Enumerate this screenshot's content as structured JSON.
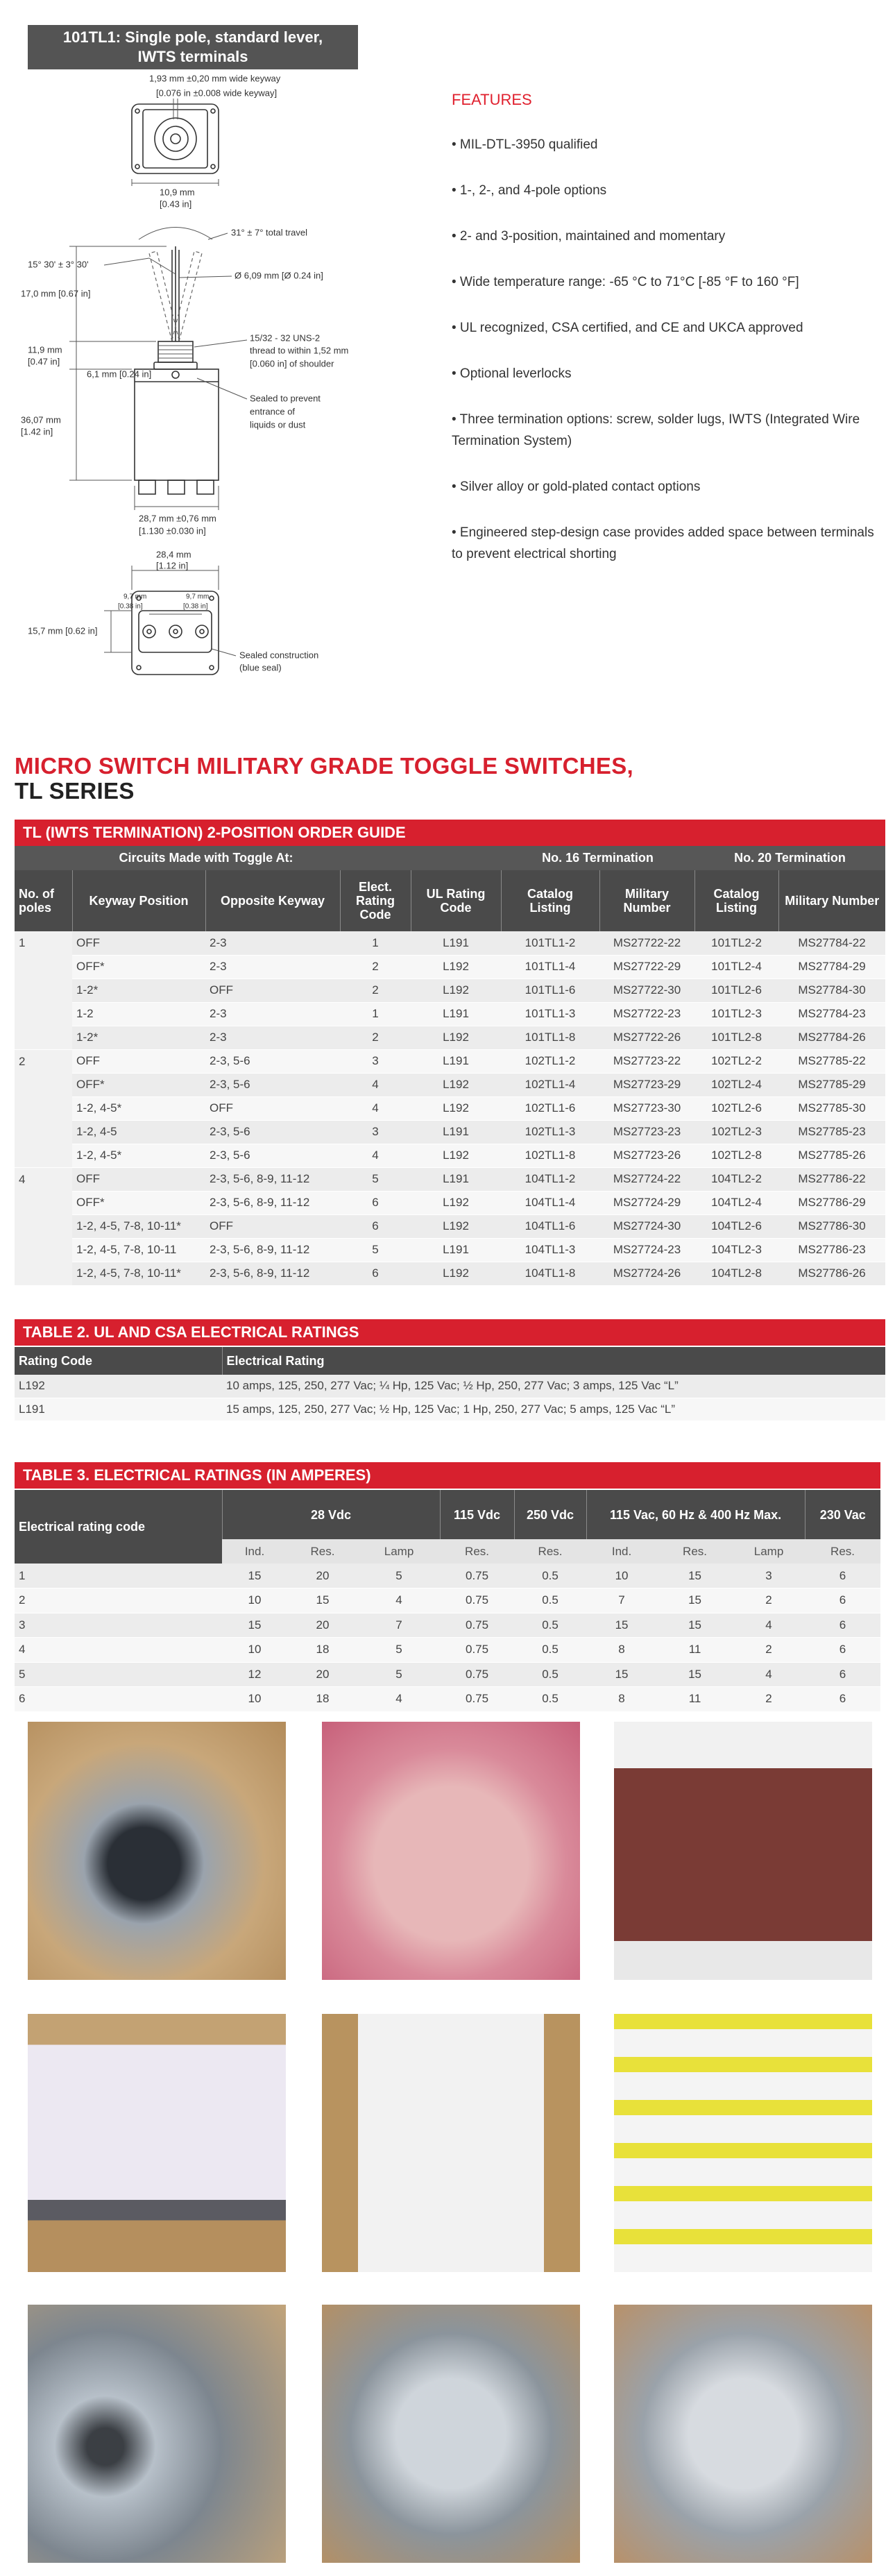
{
  "drawing": {
    "title_line1": "101TL1: Single pole, standard lever,",
    "title_line2": "IWTS terminals",
    "labels": [
      "1,93 mm ±0,20 mm wide keyway",
      "[0.076 in ±0.008 wide keyway]",
      "10,9 mm",
      "[0.43 in]",
      "31° ± 7° total travel",
      "15° 30' ± 3° 30'",
      "Ø 6,09 mm [Ø 0.24 in]",
      "17,0 mm [0.67 in]",
      "15/32 - 32 UNS-2",
      "thread to within 1,52 mm",
      "[0.060 in] of shoulder",
      "11,9 mm",
      "[0.47 in]",
      "6,1 mm [0.24 in]",
      "Sealed to prevent",
      "entrance of",
      "liquids or dust",
      "36,07 mm",
      "[1.42 in]",
      "28,7 mm ±0,76 mm",
      "[1.130 ±0.030 in]",
      "28,4 mm",
      "[1.12 in]",
      "9,7 mm",
      "[0.38 in]",
      "9,7 mm",
      "[0.38 in]",
      "15,7 mm [0.62 in]",
      "Sealed construction",
      "(blue seal)"
    ]
  },
  "features": {
    "heading": "FEATURES",
    "items": [
      "• MIL-DTL-3950 qualified",
      "• 1-, 2-, and 4-pole options",
      "• 2- and 3-position, maintained and momentary",
      "• Wide temperature range: -65 °C to 71°C [-85 °F to 160 °F]",
      "• UL recognized, CSA certified, and CE and UKCA approved",
      "• Optional leverlocks",
      "• Three termination options: screw, solder lugs, IWTS (Integrated Wire Termination System)",
      "• Silver alloy or gold-plated contact options",
      "• Engineered step-design case provides added space between terminals to prevent electrical shorting"
    ]
  },
  "heading": {
    "line1": "MICRO SWITCH MILITARY GRADE TOGGLE SWITCHES,",
    "line2": "TL SERIES"
  },
  "table1": {
    "title": "TL (IWTS TERMINATION) 2-POSITION ORDER GUIDE",
    "group_headers": [
      "Circuits Made with Toggle At:",
      "No. 16 Termination",
      "No. 20 Termination"
    ],
    "columns": [
      "No. of poles",
      "Keyway Position",
      "Opposite Keyway",
      "Elect. Rating Code",
      "UL Rating Code",
      "Catalog Listing",
      "Military Number",
      "Catalog Listing",
      "Military Number"
    ],
    "groups": [
      {
        "poles": "1",
        "rows": [
          [
            "OFF",
            "2-3",
            "1",
            "L191",
            "101TL1-2",
            "MS27722-22",
            "101TL2-2",
            "MS27784-22"
          ],
          [
            "OFF*",
            "2-3",
            "2",
            "L192",
            "101TL1-4",
            "MS27722-29",
            "101TL2-4",
            "MS27784-29"
          ],
          [
            "1-2*",
            "OFF",
            "2",
            "L192",
            "101TL1-6",
            "MS27722-30",
            "101TL2-6",
            "MS27784-30"
          ],
          [
            "1-2",
            "2-3",
            "1",
            "L191",
            "101TL1-3",
            "MS27722-23",
            "101TL2-3",
            "MS27784-23"
          ],
          [
            "1-2*",
            "2-3",
            "2",
            "L192",
            "101TL1-8",
            "MS27722-26",
            "101TL2-8",
            "MS27784-26"
          ]
        ]
      },
      {
        "poles": "2",
        "rows": [
          [
            "OFF",
            "2-3, 5-6",
            "3",
            "L191",
            "102TL1-2",
            "MS27723-22",
            "102TL2-2",
            "MS27785-22"
          ],
          [
            "OFF*",
            "2-3, 5-6",
            "4",
            "L192",
            "102TL1-4",
            "MS27723-29",
            "102TL2-4",
            "MS27785-29"
          ],
          [
            "1-2, 4-5*",
            "OFF",
            "4",
            "L192",
            "102TL1-6",
            "MS27723-30",
            "102TL2-6",
            "MS27785-30"
          ],
          [
            "1-2, 4-5",
            "2-3, 5-6",
            "3",
            "L191",
            "102TL1-3",
            "MS27723-23",
            "102TL2-3",
            "MS27785-23"
          ],
          [
            "1-2, 4-5*",
            "2-3, 5-6",
            "4",
            "L192",
            "102TL1-8",
            "MS27723-26",
            "102TL2-8",
            "MS27785-26"
          ]
        ]
      },
      {
        "poles": "4",
        "rows": [
          [
            "OFF",
            "2-3, 5-6, 8-9, 11-12",
            "5",
            "L191",
            "104TL1-2",
            "MS27724-22",
            "104TL2-2",
            "MS27786-22"
          ],
          [
            "OFF*",
            "2-3, 5-6, 8-9, 11-12",
            "6",
            "L192",
            "104TL1-4",
            "MS27724-29",
            "104TL2-4",
            "MS27786-29"
          ],
          [
            "1-2, 4-5, 7-8, 10-11*",
            "OFF",
            "6",
            "L192",
            "104TL1-6",
            "MS27724-30",
            "104TL2-6",
            "MS27786-30"
          ],
          [
            "1-2, 4-5, 7-8, 10-11",
            "2-3, 5-6, 8-9, 11-12",
            "5",
            "L191",
            "104TL1-3",
            "MS27724-23",
            "104TL2-3",
            "MS27786-23"
          ],
          [
            "1-2, 4-5, 7-8, 10-11*",
            "2-3, 5-6, 8-9, 11-12",
            "6",
            "L192",
            "104TL1-8",
            "MS27724-26",
            "104TL2-8",
            "MS27786-26"
          ]
        ]
      }
    ]
  },
  "table2": {
    "title": "TABLE 2. UL AND CSA ELECTRICAL RATINGS",
    "columns": [
      "Rating Code",
      "Electrical Rating"
    ],
    "rows": [
      [
        "L192",
        "10 amps, 125, 250, 277 Vac; ¼ Hp, 125 Vac; ½ Hp, 250, 277 Vac; 3 amps, 125 Vac “L”"
      ],
      [
        "L191",
        "15 amps, 125, 250, 277 Vac; ½ Hp, 125 Vac; 1 Hp, 250, 277 Vac; 5 amps, 125 Vac “L”"
      ]
    ]
  },
  "table3": {
    "title": "TABLE 3. ELECTRICAL RATINGS (IN AMPERES)",
    "header": [
      "Electrical rating code",
      "28 Vdc",
      "115 Vdc",
      "250 Vdc",
      "115 Vac, 60 Hz & 400 Hz Max.",
      "230 Vac"
    ],
    "subheader": [
      "Ind.",
      "Res.",
      "Lamp",
      "Res.",
      "Res.",
      "Ind.",
      "Res.",
      "Lamp",
      "Res."
    ],
    "rows": [
      [
        "1",
        "15",
        "20",
        "5",
        "0.75",
        "0.5",
        "10",
        "15",
        "3",
        "6"
      ],
      [
        "2",
        "10",
        "15",
        "4",
        "0.75",
        "0.5",
        "7",
        "15",
        "2",
        "6"
      ],
      [
        "3",
        "15",
        "20",
        "7",
        "0.75",
        "0.5",
        "15",
        "15",
        "4",
        "6"
      ],
      [
        "4",
        "10",
        "18",
        "5",
        "0.75",
        "0.5",
        "8",
        "11",
        "2",
        "6"
      ],
      [
        "5",
        "12",
        "20",
        "5",
        "0.75",
        "0.5",
        "15",
        "15",
        "4",
        "6"
      ],
      [
        "6",
        "10",
        "18",
        "4",
        "0.75",
        "0.5",
        "8",
        "11",
        "2",
        "6"
      ]
    ]
  }
}
